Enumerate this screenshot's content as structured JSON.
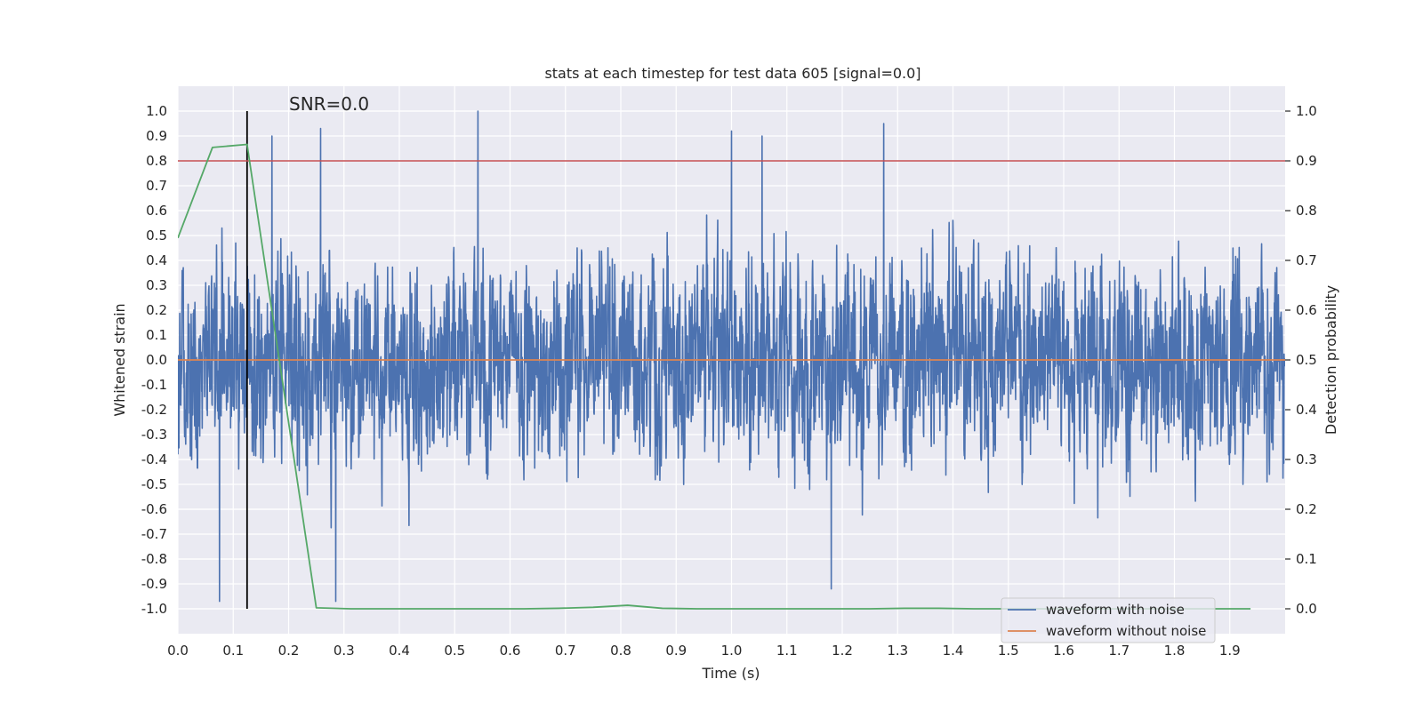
{
  "chart_data": {
    "type": "line",
    "title": "stats at each timestep for test data 605 [signal=0.0]",
    "xlabel": "Time (s)",
    "ylabel_left": "Whitened strain",
    "ylabel_right": "Detection probability",
    "annotation": "SNR=0.0",
    "xlim": [
      0.0,
      2.0
    ],
    "ylim_left": [
      -1.1,
      1.1
    ],
    "ylim_right": [
      -0.05,
      1.05
    ],
    "x_ticks": [
      "0.0",
      "0.1",
      "0.2",
      "0.3",
      "0.4",
      "0.5",
      "0.6",
      "0.7",
      "0.8",
      "0.9",
      "1.0",
      "1.1",
      "1.2",
      "1.3",
      "1.4",
      "1.5",
      "1.6",
      "1.7",
      "1.8",
      "1.9"
    ],
    "y_left_ticks": [
      "1.0",
      "0.9",
      "0.8",
      "0.7",
      "0.6",
      "0.5",
      "0.4",
      "0.3",
      "0.2",
      "0.1",
      "0.0",
      "-0.1",
      "-0.2",
      "-0.3",
      "-0.4",
      "-0.5",
      "-0.6",
      "-0.7",
      "-0.8",
      "-0.9",
      "-1.0"
    ],
    "y_right_ticks": [
      "1.0",
      "0.9",
      "0.8",
      "0.7",
      "0.6",
      "0.5",
      "0.4",
      "0.3",
      "0.2",
      "0.1",
      "0.0"
    ],
    "threshold": {
      "axis": "right",
      "value": 0.9,
      "color": "#c44e52"
    },
    "marker_line": {
      "x": 0.125,
      "y_range": [
        -1.0,
        1.0
      ],
      "color": "#000000"
    },
    "background": "#eaeaf2",
    "grid": true,
    "legend": {
      "location": "bottom-right",
      "entries": [
        {
          "label": "waveform with noise",
          "color": "#4c72b0"
        },
        {
          "label": "waveform without noise",
          "color": "#dd8452"
        }
      ]
    },
    "series": [
      {
        "name": "waveform with noise",
        "axis": "left",
        "color": "#4c72b0",
        "style": "noise",
        "sample_rate": 2048,
        "x_range": [
          0.0,
          2.0
        ],
        "approx_amplitude_range": [
          -1.0,
          1.0
        ],
        "notable_peaks": [
          {
            "x": 0.542,
            "y": 1.0
          },
          {
            "x": 0.258,
            "y": 0.93
          },
          {
            "x": 1.275,
            "y": 0.95
          },
          {
            "x": 1.0,
            "y": 0.92
          },
          {
            "x": 1.055,
            "y": 0.9
          },
          {
            "x": 0.17,
            "y": 0.9
          },
          {
            "x": 0.075,
            "y": -0.97
          },
          {
            "x": 0.285,
            "y": -0.97
          },
          {
            "x": 1.18,
            "y": -0.92
          }
        ]
      },
      {
        "name": "waveform without noise",
        "axis": "left",
        "color": "#dd8452",
        "x": [
          0.0,
          2.0
        ],
        "y": [
          0.0,
          0.0
        ]
      },
      {
        "name": "detection probability",
        "axis": "right",
        "color": "#55a868",
        "x": [
          0.0,
          0.0625,
          0.125,
          0.25,
          0.3125,
          0.375,
          0.4375,
          0.5,
          0.5625,
          0.625,
          0.6875,
          0.75,
          0.8125,
          0.875,
          0.9375,
          1.0,
          1.0625,
          1.125,
          1.1875,
          1.25,
          1.3125,
          1.375,
          1.4375,
          1.5,
          1.5625,
          1.625,
          1.6875,
          1.75,
          1.8125,
          1.875,
          1.9375
        ],
        "y": [
          0.745,
          0.927,
          0.933,
          0.002,
          0.0,
          0.0,
          0.0,
          0.0,
          0.0,
          0.0,
          0.001,
          0.003,
          0.007,
          0.001,
          0.0,
          0.0,
          0.0,
          0.0,
          0.0,
          0.0,
          0.001,
          0.001,
          0.0,
          0.0,
          0.0,
          0.0,
          0.0,
          0.0,
          0.0,
          0.0,
          0.0
        ]
      }
    ]
  }
}
